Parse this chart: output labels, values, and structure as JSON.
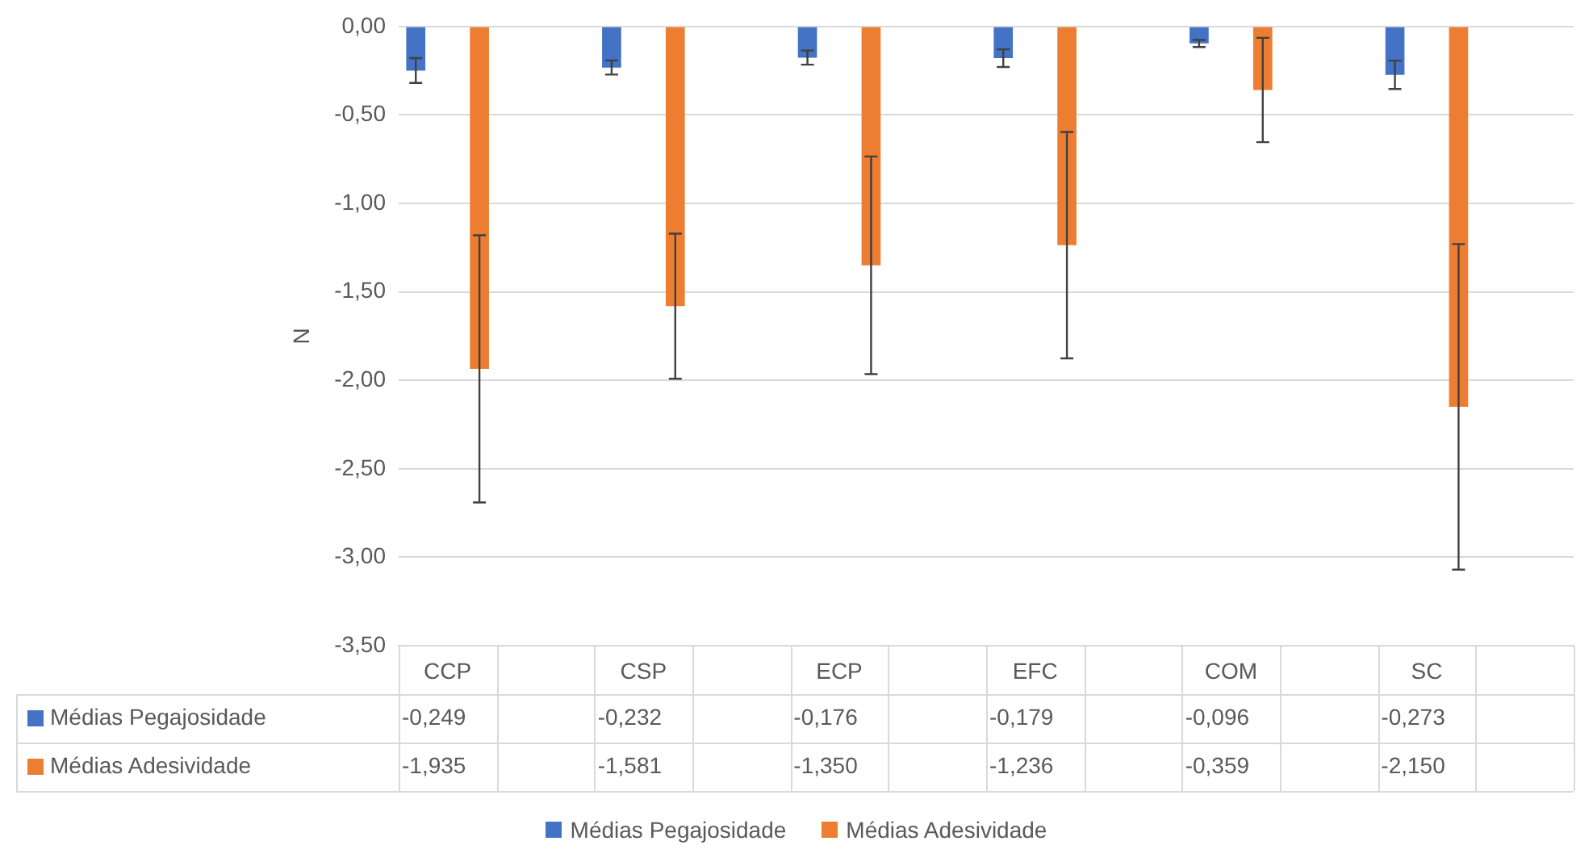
{
  "chart_data": {
    "type": "bar",
    "ylabel": "N",
    "categories": [
      "CCP",
      null,
      "CSP",
      null,
      "ECP",
      null,
      "EFC",
      null,
      "COM",
      null,
      "SC",
      null
    ],
    "series": [
      {
        "name": "Médias Pegajosidade",
        "color": "#4472c4",
        "values": [
          -0.249,
          null,
          -0.232,
          null,
          -0.176,
          null,
          -0.179,
          null,
          -0.096,
          null,
          -0.273,
          null
        ],
        "errors": [
          0.07,
          null,
          0.04,
          null,
          0.04,
          null,
          0.05,
          null,
          0.02,
          null,
          0.08,
          null
        ],
        "value_labels": [
          "-0,249",
          null,
          "-0,232",
          null,
          "-0,176",
          null,
          "-0,179",
          null,
          "-0,096",
          null,
          "-0,273",
          null
        ]
      },
      {
        "name": "Médias Adesividade",
        "color": "#ed7d31",
        "values": [
          -1.935,
          null,
          -1.581,
          null,
          -1.35,
          null,
          -1.236,
          null,
          -0.359,
          null,
          -2.15,
          null
        ],
        "errors": [
          0.755,
          null,
          0.41,
          null,
          0.615,
          null,
          0.64,
          null,
          0.295,
          null,
          0.92,
          null
        ],
        "value_labels": [
          "-1,935",
          null,
          "-1,581",
          null,
          "-1,350",
          null,
          "-1,236",
          null,
          "-0,359",
          null,
          "-2,150",
          null
        ]
      }
    ],
    "ylim": [
      -3.5,
      0
    ],
    "yticks": [
      {
        "value": 0,
        "label": "0,00"
      },
      {
        "value": -0.5,
        "label": "-0,50"
      },
      {
        "value": -1,
        "label": "-1,00"
      },
      {
        "value": -1.5,
        "label": "-1,50"
      },
      {
        "value": -2,
        "label": "-2,00"
      },
      {
        "value": -2.5,
        "label": "-2,50"
      },
      {
        "value": -3,
        "label": "-3,00"
      },
      {
        "value": -3.5,
        "label": "-3,50"
      }
    ],
    "grid": "y",
    "legend": "bottom"
  }
}
